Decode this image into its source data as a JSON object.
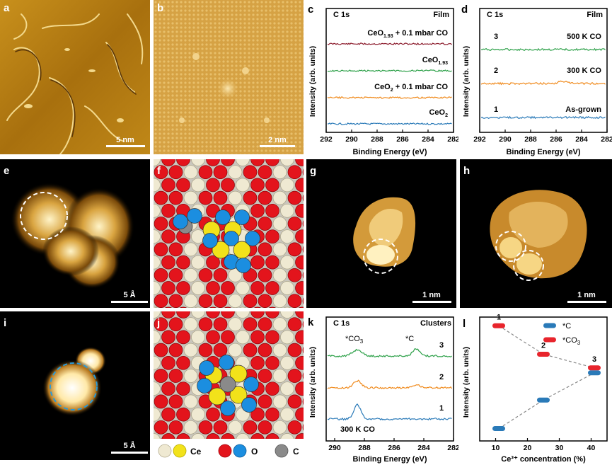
{
  "panels": {
    "a": {
      "label": "a",
      "scale": "5 nm"
    },
    "b": {
      "label": "b",
      "scale": "2 nm"
    },
    "c": {
      "label": "c",
      "title": "C 1s",
      "note": "Film",
      "xlabel": "Binding Energy (eV)",
      "ylabel": "Intensity (arb. units)",
      "ticks": [
        "292",
        "290",
        "288",
        "286",
        "284",
        "282"
      ],
      "traces": [
        {
          "label": "CeO",
          "sub": "1.93",
          "suffix": " + 0.1 mbar CO",
          "color": "#8b1a2b"
        },
        {
          "label": "CeO",
          "sub": "1.93",
          "suffix": "",
          "color": "#2ca048"
        },
        {
          "label": "CeO",
          "sub": "2",
          "suffix": " + 0.1 mbar CO",
          "color": "#f08a1c"
        },
        {
          "label": "CeO",
          "sub": "2",
          "suffix": "",
          "color": "#2a7ab8"
        }
      ]
    },
    "d": {
      "label": "d",
      "title": "C 1s",
      "note": "Film",
      "xlabel": "Binding Energy (eV)",
      "ylabel": "Intensity (arb. units)",
      "ticks": [
        "292",
        "290",
        "288",
        "286",
        "284",
        "282"
      ],
      "traces": [
        {
          "num": "3",
          "label": "500 K CO",
          "color": "#2ca048"
        },
        {
          "num": "2",
          "label": "300 K CO",
          "color": "#f08a1c"
        },
        {
          "num": "1",
          "label": "As-grown",
          "color": "#2a7ab8"
        }
      ]
    },
    "e": {
      "label": "e",
      "scale": "5 Å"
    },
    "f": {
      "label": "f"
    },
    "g": {
      "label": "g",
      "scale": "1 nm"
    },
    "h": {
      "label": "h",
      "scale": "1 nm"
    },
    "i": {
      "label": "i",
      "scale": "5 Å"
    },
    "j": {
      "label": "j"
    },
    "k": {
      "label": "k",
      "title": "C 1s",
      "note": "Clusters",
      "xlabel": "Binding Energy (eV)",
      "ylabel": "Intensity (arb. units)",
      "ticks": [
        "290",
        "288",
        "286",
        "284",
        "282"
      ],
      "peak1": "*CO",
      "peak1_sub": "3",
      "peak2": "*C",
      "condition": "300 K CO",
      "traces": [
        {
          "num": "3",
          "color": "#2ca048"
        },
        {
          "num": "2",
          "color": "#f08a1c"
        },
        {
          "num": "1",
          "color": "#2a7ab8"
        }
      ]
    },
    "l": {
      "label": "l"
    }
  },
  "legend": {
    "ce": "Ce",
    "o": "O",
    "c": "C"
  },
  "chart_data": {
    "type": "scatter",
    "xlabel": "Ce³⁺ concentration (%)",
    "ylabel": "Intensity (arb. units)",
    "xticks": [
      "10",
      "20",
      "30",
      "40"
    ],
    "xlim": [
      5,
      45
    ],
    "ylim": [
      0,
      1
    ],
    "series": [
      {
        "name": "*C",
        "color": "#2a7ab8",
        "x": [
          11,
          25,
          41
        ],
        "y": [
          0.1,
          0.33,
          0.55
        ]
      },
      {
        "name": "*CO",
        "name_sub": "3",
        "color": "#e8242c",
        "x": [
          11,
          25,
          41
        ],
        "y": [
          0.93,
          0.7,
          0.59
        ]
      }
    ],
    "point_labels": [
      "1",
      "2",
      "3"
    ]
  }
}
